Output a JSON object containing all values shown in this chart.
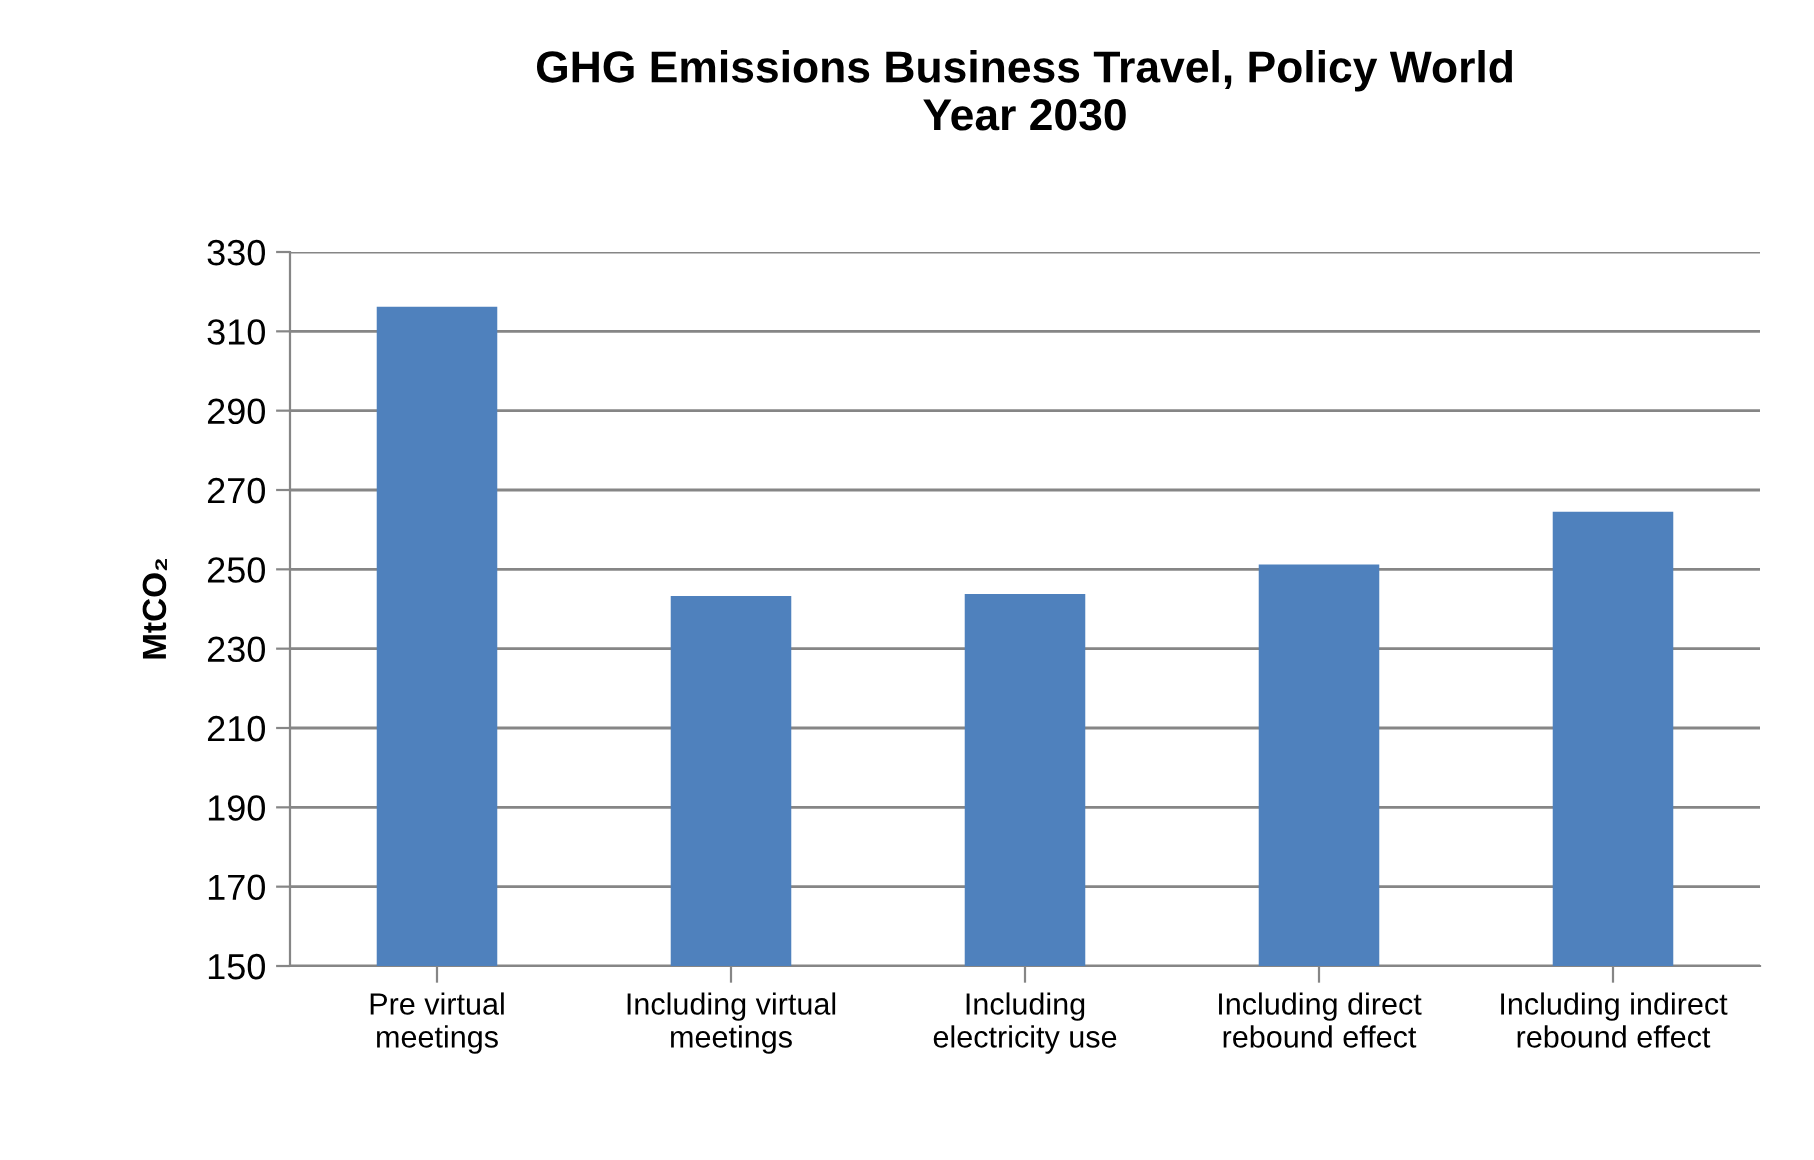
{
  "chart_data": {
    "type": "bar",
    "title": "GHG Emissions Business Travel, Policy World\nYear 2030",
    "ylabel": "MtCO₂",
    "categories": [
      "Pre virtual\nmeetings",
      "Including virtual\nmeetings",
      "Including\nelectricity use",
      "Including direct\nrebound effect",
      "Including indirect\nrebound effect"
    ],
    "values": [
      316.2,
      243.3,
      243.8,
      251.2,
      264.5
    ],
    "color": "#4f81bd",
    "ylim": [
      150,
      330
    ],
    "yticks": [
      150,
      170,
      190,
      210,
      230,
      250,
      270,
      290,
      310,
      330
    ],
    "grid": "y",
    "legend": false
  }
}
